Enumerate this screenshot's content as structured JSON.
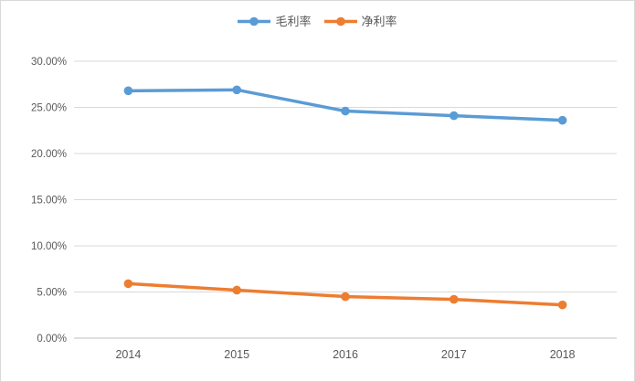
{
  "chart_data": {
    "type": "line",
    "categories": [
      "2014",
      "2015",
      "2016",
      "2017",
      "2018"
    ],
    "series": [
      {
        "name": "毛利率",
        "color": "#5B9BD5",
        "values": [
          26.8,
          26.9,
          24.6,
          24.1,
          23.6
        ]
      },
      {
        "name": "净利率",
        "color": "#ED7D31",
        "values": [
          5.9,
          5.2,
          4.5,
          4.2,
          3.6
        ]
      }
    ],
    "y_axis": {
      "min": 0,
      "max": 30,
      "tick_step": 5,
      "tick_labels": [
        "0.00%",
        "5.00%",
        "10.00%",
        "15.00%",
        "20.00%",
        "25.00%",
        "30.00%"
      ]
    },
    "x_axis": {
      "labels": [
        "2014",
        "2015",
        "2016",
        "2017",
        "2018"
      ]
    },
    "grid": true,
    "legend_position": "top",
    "style": {
      "gridline_color": "#d9d9d9",
      "axis_line_color": "#bfbfbf",
      "tick_label_color": "#595959",
      "background": "#ffffff",
      "frame_border_color": "#d9d9d9"
    }
  }
}
